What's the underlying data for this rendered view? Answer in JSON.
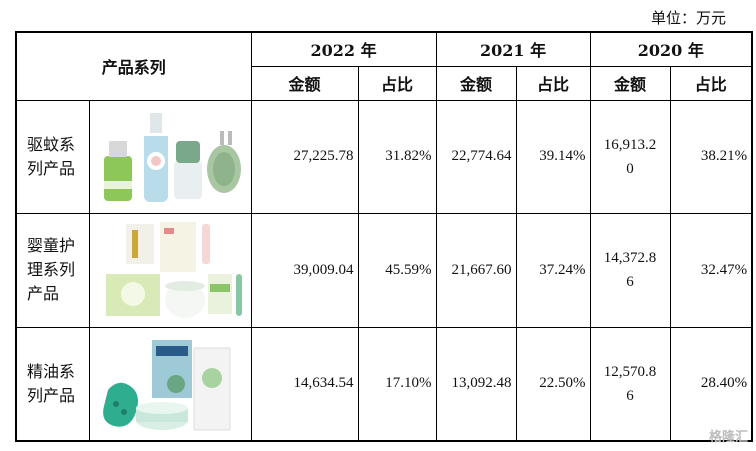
{
  "unit_label": "单位：万元",
  "header": {
    "category": "产品系列",
    "years": [
      "2022 年",
      "2021 年",
      "2020 年"
    ],
    "amount": "金额",
    "ratio": "占比"
  },
  "rows": [
    {
      "category": "驱蚊系列产品",
      "product_image": "mosquito-repellent-products-icon",
      "y2022_amount": "27,225.78",
      "y2022_ratio": "31.82%",
      "y2021_amount": "22,774.64",
      "y2021_ratio": "39.14%",
      "y2020_amount": "16,913.20",
      "y2020_ratio": "38.21%"
    },
    {
      "category": "婴童护理系列产品",
      "product_image": "baby-care-products-icon",
      "y2022_amount": "39,009.04",
      "y2022_ratio": "45.59%",
      "y2021_amount": "21,667.60",
      "y2021_ratio": "37.24%",
      "y2020_amount": "14,372.86",
      "y2020_ratio": "32.47%"
    },
    {
      "category": "精油系列产品",
      "product_image": "essential-oil-products-icon",
      "y2022_amount": "14,634.54",
      "y2022_ratio": "17.10%",
      "y2021_amount": "13,092.48",
      "y2021_ratio": "22.50%",
      "y2020_amount": "12,570.86",
      "y2020_ratio": "28.40%"
    }
  ],
  "row_cells": {
    "r0": {
      "cat_l1": "驱蚊系",
      "cat_l2": "列产品",
      "y2020_l1": "16,913.2",
      "y2020_l2": "0"
    },
    "r1": {
      "cat_l1": "婴童护",
      "cat_l2": "理系列",
      "cat_l3": "产品",
      "y2020_l1": "14,372.8",
      "y2020_l2": "6"
    },
    "r2": {
      "cat_l1": "精油系",
      "cat_l2": "列产品",
      "y2020_l1": "12,570.8",
      "y2020_l2": "6"
    }
  },
  "watermark": "格隆汇"
}
